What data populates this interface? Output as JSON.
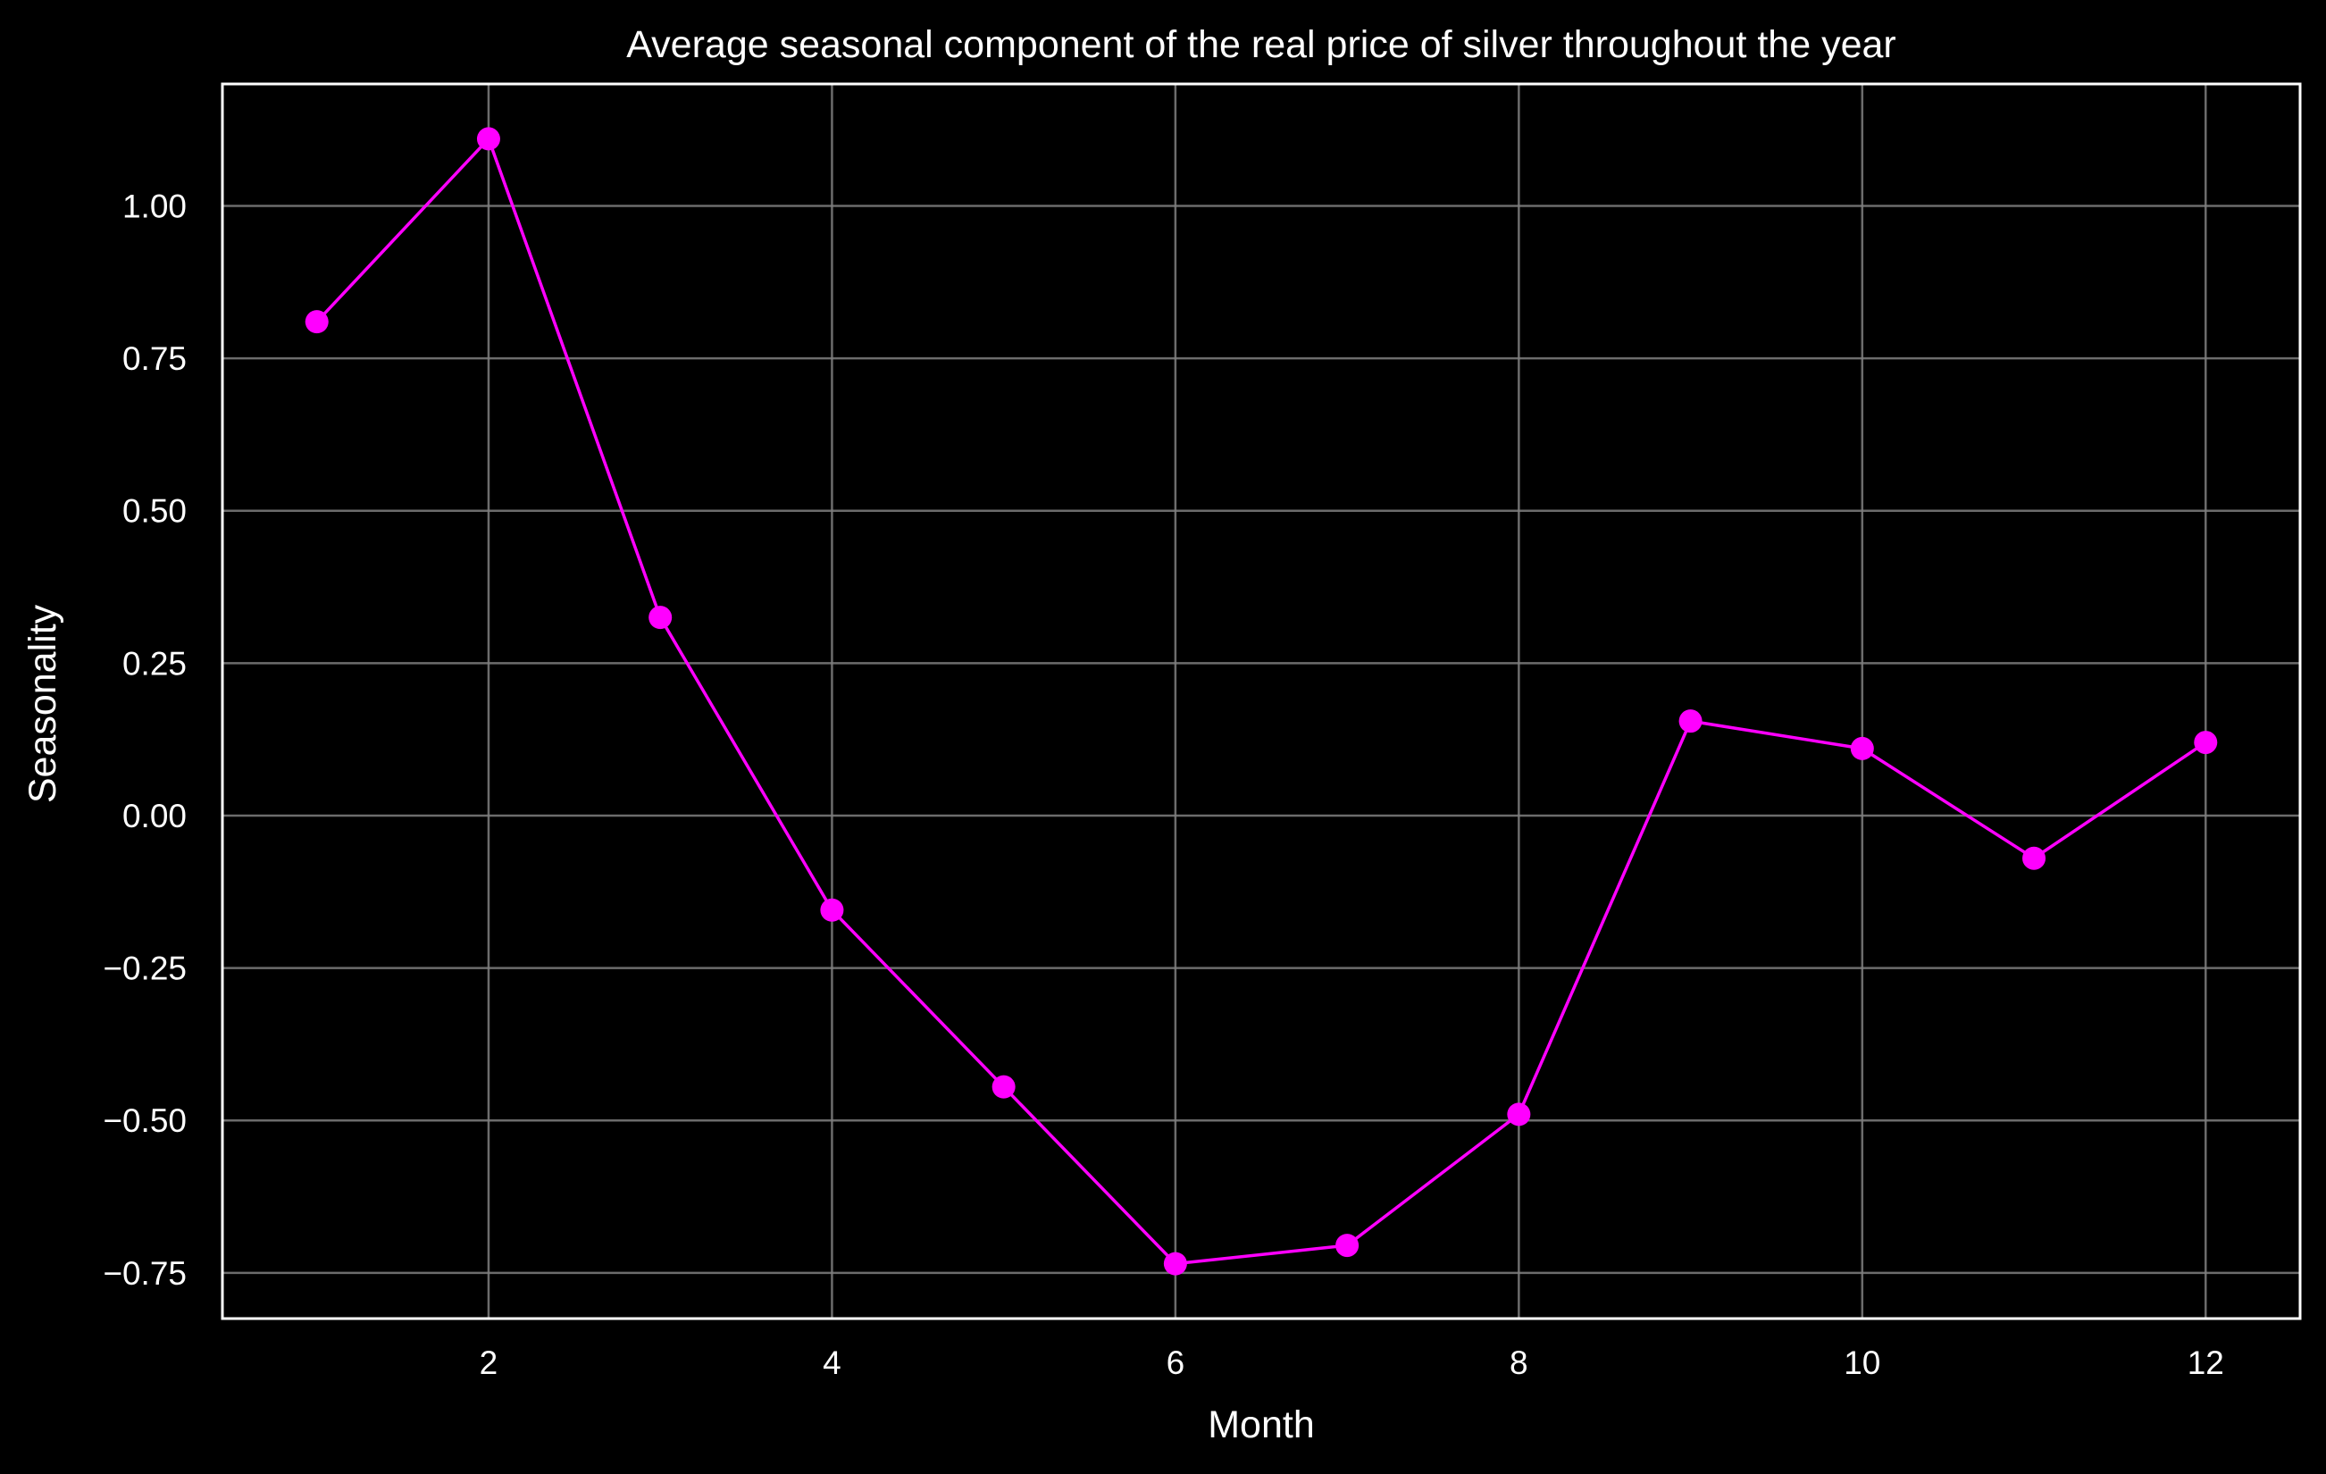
{
  "chart_data": {
    "type": "line",
    "title": "Average seasonal component of the real price of silver throughout the year",
    "xlabel": "Month",
    "ylabel": "Seasonality",
    "x": [
      1,
      2,
      3,
      4,
      5,
      6,
      7,
      8,
      9,
      10,
      11,
      12
    ],
    "series": [
      {
        "values": [
          0.81,
          1.11,
          0.325,
          -0.155,
          -0.445,
          -0.735,
          -0.705,
          -0.49,
          0.155,
          0.11,
          -0.07,
          0.12
        ],
        "color": "#ff00ff"
      }
    ],
    "xlim": [
      0.45,
      12.55
    ],
    "ylim": [
      -0.825,
      1.2
    ],
    "xticks": [
      2,
      4,
      6,
      8,
      10,
      12
    ],
    "xtick_labels": [
      "2",
      "4",
      "6",
      "8",
      "10",
      "12"
    ],
    "yticks": [
      -0.75,
      -0.5,
      -0.25,
      0.0,
      0.25,
      0.5,
      0.75,
      1.0
    ],
    "ytick_labels": [
      "−0.75",
      "−0.50",
      "−0.25",
      "0.00",
      "0.25",
      "0.50",
      "0.75",
      "1.00"
    ],
    "grid": true,
    "background": "#000000",
    "axis_color": "#ffffff",
    "grid_color": "#7f7f7f"
  }
}
